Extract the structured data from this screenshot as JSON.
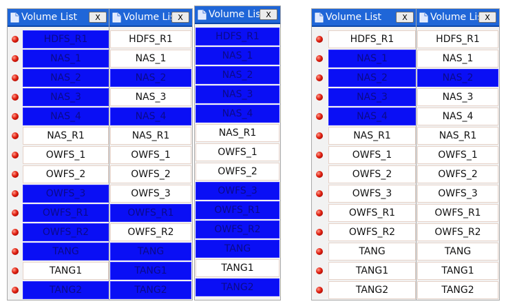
{
  "colors": {
    "title_bar": "#1f66d8",
    "selected": "#0a0ff5",
    "status_dot": "#e02010"
  },
  "panels": [
    {
      "title": "Volume List",
      "close_label": "X",
      "show_dots": true,
      "rows": [
        {
          "label": "HDFS_R1",
          "selected": true
        },
        {
          "label": "NAS_1",
          "selected": true
        },
        {
          "label": "NAS_2",
          "selected": true
        },
        {
          "label": "NAS_3",
          "selected": true
        },
        {
          "label": "NAS_4",
          "selected": true
        },
        {
          "label": "NAS_R1",
          "selected": false
        },
        {
          "label": "OWFS_1",
          "selected": false
        },
        {
          "label": "OWFS_2",
          "selected": false
        },
        {
          "label": "OWFS_3",
          "selected": true
        },
        {
          "label": "OWFS_R1",
          "selected": true
        },
        {
          "label": "OWFS_R2",
          "selected": true
        },
        {
          "label": "TANG",
          "selected": true
        },
        {
          "label": "TANG1",
          "selected": false
        },
        {
          "label": "TANG2",
          "selected": true
        }
      ]
    },
    {
      "title": "Volume List",
      "close_label": "X",
      "show_dots": false,
      "rows": [
        {
          "label": "HDFS_R1",
          "selected": false
        },
        {
          "label": "NAS_1",
          "selected": false
        },
        {
          "label": "NAS_2",
          "selected": true
        },
        {
          "label": "NAS_3",
          "selected": false
        },
        {
          "label": "NAS_4",
          "selected": true
        },
        {
          "label": "NAS_R1",
          "selected": false
        },
        {
          "label": "OWFS_1",
          "selected": false
        },
        {
          "label": "OWFS_2",
          "selected": false
        },
        {
          "label": "OWFS_3",
          "selected": false
        },
        {
          "label": "OWFS_R1",
          "selected": true
        },
        {
          "label": "OWFS_R2",
          "selected": false
        },
        {
          "label": "TANG",
          "selected": true
        },
        {
          "label": "TANG1",
          "selected": true
        },
        {
          "label": "TANG2",
          "selected": true
        }
      ]
    },
    {
      "title": "Volume List",
      "close_label": "X",
      "show_dots": false,
      "rows": [
        {
          "label": "HDFS_R1",
          "selected": true
        },
        {
          "label": "NAS_1",
          "selected": true
        },
        {
          "label": "NAS_2",
          "selected": true
        },
        {
          "label": "NAS_3",
          "selected": true
        },
        {
          "label": "NAS_4",
          "selected": true
        },
        {
          "label": "NAS_R1",
          "selected": false
        },
        {
          "label": "OWFS_1",
          "selected": false
        },
        {
          "label": "OWFS_2",
          "selected": false
        },
        {
          "label": "OWFS_3",
          "selected": true
        },
        {
          "label": "OWFS_R1",
          "selected": true
        },
        {
          "label": "OWFS_R2",
          "selected": true
        },
        {
          "label": "TANG",
          "selected": true
        },
        {
          "label": "TANG1",
          "selected": false
        },
        {
          "label": "TANG2",
          "selected": true
        }
      ]
    },
    {
      "title": "Volume List",
      "close_label": "X",
      "show_dots": true,
      "rows": [
        {
          "label": "HDFS_R1",
          "selected": false
        },
        {
          "label": "NAS_1",
          "selected": true
        },
        {
          "label": "NAS_2",
          "selected": true
        },
        {
          "label": "NAS_3",
          "selected": true
        },
        {
          "label": "NAS_4",
          "selected": true
        },
        {
          "label": "NAS_R1",
          "selected": false
        },
        {
          "label": "OWFS_1",
          "selected": false
        },
        {
          "label": "OWFS_2",
          "selected": false
        },
        {
          "label": "OWFS_3",
          "selected": false
        },
        {
          "label": "OWFS_R1",
          "selected": false
        },
        {
          "label": "OWFS_R2",
          "selected": false
        },
        {
          "label": "TANG",
          "selected": false
        },
        {
          "label": "TANG1",
          "selected": false
        },
        {
          "label": "TANG2",
          "selected": false
        }
      ]
    },
    {
      "title": "Volume List",
      "close_label": "X",
      "show_dots": false,
      "rows": [
        {
          "label": "HDFS_R1",
          "selected": false
        },
        {
          "label": "NAS_1",
          "selected": false
        },
        {
          "label": "NAS_2",
          "selected": true
        },
        {
          "label": "NAS_3",
          "selected": false
        },
        {
          "label": "NAS_4",
          "selected": false
        },
        {
          "label": "NAS_R1",
          "selected": false
        },
        {
          "label": "OWFS_1",
          "selected": false
        },
        {
          "label": "OWFS_2",
          "selected": false
        },
        {
          "label": "OWFS_3",
          "selected": false
        },
        {
          "label": "OWFS_R1",
          "selected": false
        },
        {
          "label": "OWFS_R2",
          "selected": false
        },
        {
          "label": "TANG",
          "selected": false
        },
        {
          "label": "TANG1",
          "selected": false
        },
        {
          "label": "TANG2",
          "selected": false
        }
      ]
    }
  ]
}
